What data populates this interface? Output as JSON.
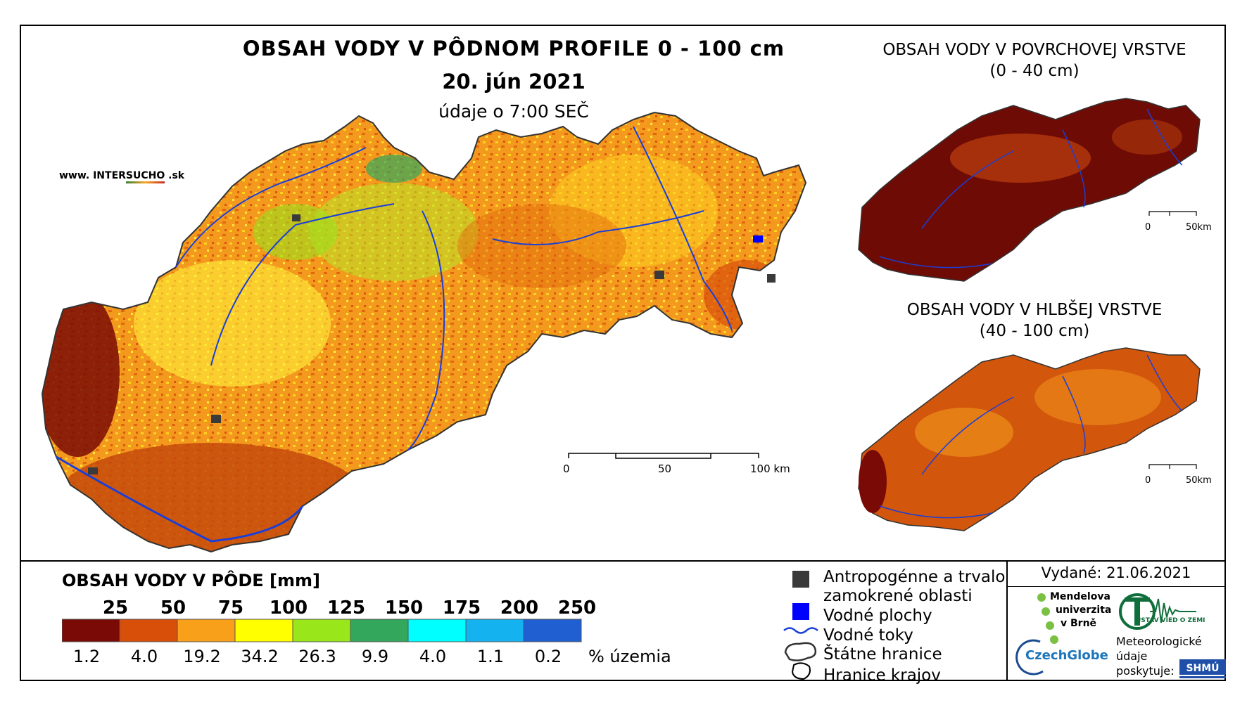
{
  "title": {
    "main": "OBSAH VODY V PÔDNOM PROFILE 0 - 100 cm",
    "date": "20. jún 2021",
    "time": "údaje o 7:00 SEČ"
  },
  "credit": {
    "prefix": "www. INTER",
    "accent": "SUCHO",
    "suffix": " .sk"
  },
  "insets": [
    {
      "title": "OBSAH VODY V POVRCHOVEJ VRSTVE",
      "subtitle": "(0 - 40 cm)",
      "scale": [
        "0",
        "50km"
      ]
    },
    {
      "title": "OBSAH VODY V HLBŠEJ VRSTVE",
      "subtitle": "(40 - 100 cm)",
      "scale": [
        "0",
        "50km"
      ]
    }
  ],
  "main_scale": [
    "0",
    "50",
    "100 km"
  ],
  "legend": {
    "title": "OBSAH VODY V PÔDE [mm]",
    "thresholds": [
      "25",
      "50",
      "75",
      "100",
      "125",
      "150",
      "175",
      "200",
      "250"
    ],
    "colors": [
      "#7a0a05",
      "#d84f0a",
      "#f9a01b",
      "#ffff00",
      "#99e61a",
      "#33a85c",
      "#00ffff",
      "#15b2f0",
      "#1f5fd1"
    ],
    "percentages": [
      "1.2",
      "4.0",
      "19.2",
      "34.2",
      "26.3",
      "9.9",
      "4.0",
      "1.1",
      "0.2"
    ],
    "unit": "% územia"
  },
  "symbols": [
    {
      "lines": [
        "Antropogénne a trvalo",
        "zamokrené oblasti"
      ],
      "icon": "dark-square-icon"
    },
    {
      "lines": [
        "Vodné plochy"
      ],
      "icon": "blue-square-icon"
    },
    {
      "lines": [
        "Vodné toky"
      ],
      "icon": "river-line-icon"
    },
    {
      "lines": [
        "Štátne hranice"
      ],
      "icon": "state-border-icon"
    },
    {
      "lines": [
        "Hranice krajov"
      ],
      "icon": "region-border-icon"
    }
  ],
  "issued": "Vydané: 21.06.2021",
  "logos": {
    "mendel": [
      "Mendelova",
      "univerzita",
      "v Brně"
    ],
    "uvz": "ÚSTAV VIED O ZEMI",
    "czechglobe": "CzechGlobe",
    "meteo": [
      "Meteorologické",
      "údaje",
      "poskytuje:"
    ],
    "shmu": "SHMÚ"
  },
  "colors": {
    "river": "#1a3fd8",
    "anthropogenic": "#3a3a3a",
    "water": "#0000ff"
  }
}
